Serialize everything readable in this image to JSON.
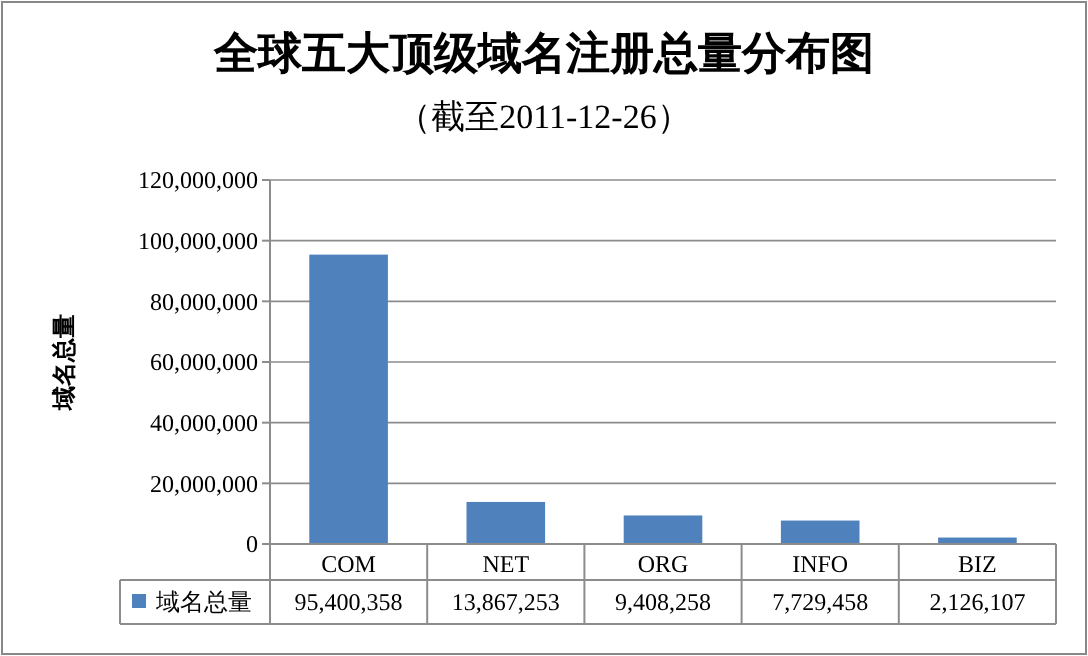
{
  "chart_data": {
    "type": "bar",
    "title": "全球五大顶级域名注册总量分布图",
    "subtitle": "（截至2011-12-26）",
    "ylabel": "域名总量",
    "categories": [
      "COM",
      "NET",
      "ORG",
      "INFO",
      "BIZ"
    ],
    "series": [
      {
        "name": "域名总量",
        "color": "#4f81bd",
        "values": [
          95400358,
          13867253,
          9408258,
          7729458,
          2126107
        ],
        "value_labels": [
          "95,400,358",
          "13,867,253",
          "9,408,258",
          "7,729,458",
          "2,126,107"
        ]
      }
    ],
    "ylim": [
      0,
      120000000
    ],
    "yticks": [
      {
        "value": 0,
        "label": "0"
      },
      {
        "value": 20000000,
        "label": "20,000,000"
      },
      {
        "value": 40000000,
        "label": "40,000,000"
      },
      {
        "value": 60000000,
        "label": "60,000,000"
      },
      {
        "value": 80000000,
        "label": "80,000,000"
      },
      {
        "value": 100000000,
        "label": "100,000,000"
      },
      {
        "value": 120000000,
        "label": "120,000,000"
      }
    ],
    "grid": "y",
    "legend": "bottom"
  }
}
